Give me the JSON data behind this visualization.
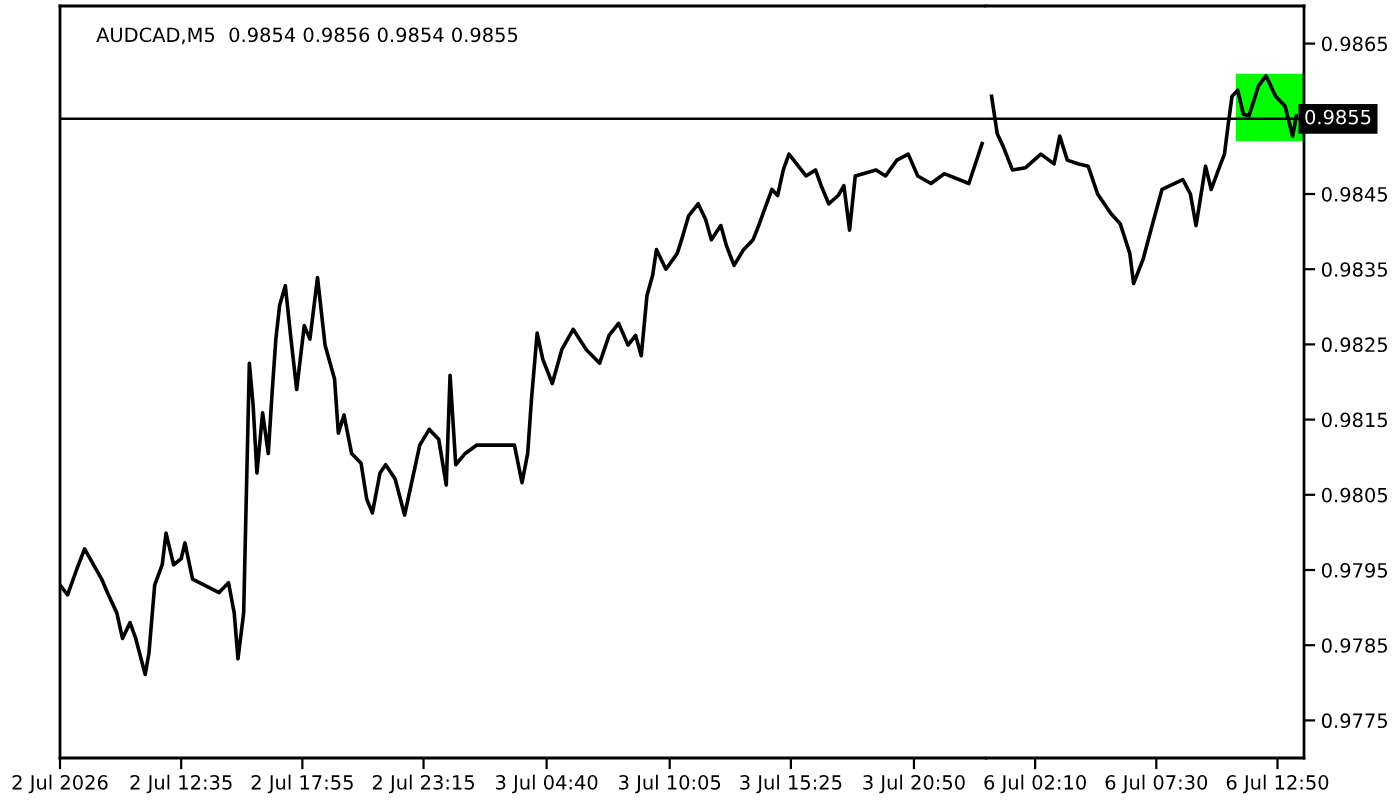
{
  "chart_data": [
    {
      "type": "line",
      "title": "AUDCAD,M5  0.9854 0.9856 0.9854 0.9855",
      "tick_labels": "x",
      "series": [
        {
          "color": "#000000",
          "x": [
            "2026-07-02T07:15",
            "2026-07-02T07:35",
            "2026-07-02T08:00",
            "2026-07-02T08:20",
            "2026-07-02T09:05",
            "2026-07-02T09:20",
            "2026-07-02T09:45",
            "2026-07-02T10:00",
            "2026-07-02T10:20",
            "2026-07-02T10:35",
            "2026-07-02T11:00",
            "2026-07-02T11:10",
            "2026-07-02T11:25",
            "2026-07-02T11:45",
            "2026-07-02T11:55",
            "2026-07-02T12:15",
            "2026-07-02T12:35",
            "2026-07-02T12:45",
            "2026-07-02T13:05",
            "2026-07-02T14:15",
            "2026-07-02T14:40",
            "2026-07-02T14:55",
            "2026-07-02T15:05",
            "2026-07-02T15:20",
            "2026-07-02T15:35",
            "2026-07-02T15:45",
            "2026-07-02T15:55",
            "2026-07-02T16:10",
            "2026-07-02T16:25",
            "2026-07-02T16:35",
            "2026-07-02T16:45",
            "2026-07-02T16:55",
            "2026-07-02T17:10",
            "2026-07-02T17:25",
            "2026-07-02T17:40",
            "2026-07-02T18:00",
            "2026-07-02T18:15",
            "2026-07-02T18:35",
            "2026-07-02T18:55",
            "2026-07-02T19:20",
            "2026-07-02T19:30",
            "2026-07-02T19:45",
            "2026-07-02T20:05",
            "2026-07-02T20:30",
            "2026-07-02T20:45",
            "2026-07-02T21:00",
            "2026-07-02T21:20",
            "2026-07-02T21:35",
            "2026-07-02T22:00",
            "2026-07-02T22:25",
            "2026-07-02T22:40",
            "2026-07-02T23:05",
            "2026-07-02T23:30",
            "2026-07-02T23:55",
            "2026-07-03T00:15",
            "2026-07-03T00:25",
            "2026-07-03T00:40",
            "2026-07-03T01:05",
            "2026-07-03T01:35",
            "2026-07-03T03:15",
            "2026-07-03T03:35",
            "2026-07-03T03:50",
            "2026-07-03T04:00",
            "2026-07-03T04:15",
            "2026-07-03T04:30",
            "2026-07-03T04:55",
            "2026-07-03T05:20",
            "2026-07-03T05:50",
            "2026-07-03T06:25",
            "2026-07-03T07:00",
            "2026-07-03T07:25",
            "2026-07-03T07:50",
            "2026-07-03T08:15",
            "2026-07-03T08:35",
            "2026-07-03T08:50",
            "2026-07-03T09:05",
            "2026-07-03T09:20",
            "2026-07-03T09:30",
            "2026-07-03T09:55",
            "2026-07-03T10:25",
            "2026-07-03T10:40",
            "2026-07-03T10:55",
            "2026-07-03T11:20",
            "2026-07-03T11:40",
            "2026-07-03T11:55",
            "2026-07-03T12:20",
            "2026-07-03T12:35",
            "2026-07-03T12:55",
            "2026-07-03T13:20",
            "2026-07-03T13:45",
            "2026-07-03T14:00",
            "2026-07-03T14:15",
            "2026-07-03T14:35",
            "2026-07-03T14:50",
            "2026-07-03T15:05",
            "2026-07-03T15:20",
            "2026-07-03T16:05",
            "2026-07-03T16:30",
            "2026-07-03T16:45",
            "2026-07-03T17:05",
            "2026-07-03T17:30",
            "2026-07-03T17:45",
            "2026-07-03T18:00",
            "2026-07-03T18:15",
            "2026-07-03T19:10",
            "2026-07-03T19:35",
            "2026-07-03T20:05",
            "2026-07-03T20:35",
            "2026-07-03T21:00",
            "2026-07-03T21:35",
            "2026-07-03T22:10",
            "2026-07-03T23:15",
            "2026-07-03T23:50"
          ],
          "values": [
            0.9793,
            0.97917,
            0.97952,
            0.97978,
            0.97938,
            0.9792,
            0.97893,
            0.97859,
            0.9788,
            0.97859,
            0.97811,
            0.9784,
            0.9793,
            0.97957,
            0.97999,
            0.97957,
            0.97965,
            0.97986,
            0.97938,
            0.9792,
            0.97933,
            0.97893,
            0.97832,
            0.97893,
            0.98225,
            0.98169,
            0.98079,
            0.98159,
            0.98105,
            0.98185,
            0.98257,
            0.98302,
            0.98328,
            0.98257,
            0.9819,
            0.98275,
            0.98257,
            0.98339,
            0.98249,
            0.98204,
            0.98132,
            0.98156,
            0.98105,
            0.98092,
            0.98044,
            0.98026,
            0.98079,
            0.9809,
            0.98071,
            0.98023,
            0.98058,
            0.98116,
            0.98137,
            0.98124,
            0.98063,
            0.98209,
            0.9809,
            0.98105,
            0.98116,
            0.98116,
            0.98066,
            0.98105,
            0.98177,
            0.98265,
            0.9823,
            0.98198,
            0.98243,
            0.9827,
            0.98243,
            0.98225,
            0.98262,
            0.98278,
            0.98249,
            0.98262,
            0.98235,
            0.98315,
            0.98342,
            0.98376,
            0.9835,
            0.98371,
            0.98395,
            0.98421,
            0.98437,
            0.98416,
            0.98389,
            0.98408,
            0.98381,
            0.98355,
            0.98376,
            0.98389,
            0.98408,
            0.98429,
            0.98456,
            0.98448,
            0.98482,
            0.98503,
            0.98474,
            0.98482,
            0.98461,
            0.98437,
            0.98448,
            0.98461,
            0.98402,
            0.98474,
            0.98482,
            0.98474,
            0.98495,
            0.98503,
            0.98474,
            0.98464,
            0.98477,
            0.98464,
            0.98517
          ]
        }
      ],
      "xlim": [
        "2026-07-02T07:15",
        "2026-07-04T00:00"
      ],
      "xticks": [
        {
          "value": "2026-07-02T07:15",
          "label": "2 Jul 2026"
        },
        {
          "value": "2026-07-02T12:35",
          "label": "2 Jul 12:35"
        },
        {
          "value": "2026-07-02T17:55",
          "label": "2 Jul 17:55"
        },
        {
          "value": "2026-07-02T23:15",
          "label": "2 Jul 23:15"
        },
        {
          "value": "2026-07-03T04:40",
          "label": "3 Jul 04:40"
        },
        {
          "value": "2026-07-03T10:05",
          "label": "3 Jul 10:05"
        },
        {
          "value": "2026-07-03T15:25",
          "label": "3 Jul 15:25"
        },
        {
          "value": "2026-07-03T20:50",
          "label": "3 Jul 20:50"
        }
      ],
      "ylim": [
        0.977,
        0.987
      ],
      "yticks": [
        0.9865,
        0.9845,
        0.9835,
        0.9825,
        0.9815,
        0.9805,
        0.9795,
        0.9785,
        0.9775
      ],
      "ref_lines": [
        {
          "axis": "y",
          "value": 0.9855,
          "color": "#000000"
        }
      ]
    },
    {
      "type": "line",
      "series": [
        {
          "color": "#00ff00",
          "x": [
            "2026-07-06T11:00",
            "2026-07-06T14:00"
          ],
          "values": [
            null,
            null
          ],
          "lower": [
            0.9852,
            0.9852
          ],
          "upper": [
            0.9861,
            0.9861
          ]
        },
        {
          "color": "#000000",
          "x": [
            "2026-07-06T00:15",
            "2026-07-06T00:30",
            "2026-07-06T00:45",
            "2026-07-06T01:10",
            "2026-07-06T01:45",
            "2026-07-06T02:25",
            "2026-07-06T03:00",
            "2026-07-06T03:15",
            "2026-07-06T03:35",
            "2026-07-06T04:05",
            "2026-07-06T04:30",
            "2026-07-06T04:55",
            "2026-07-06T05:30",
            "2026-07-06T05:55",
            "2026-07-06T06:20",
            "2026-07-06T06:30",
            "2026-07-06T06:55",
            "2026-07-06T07:20",
            "2026-07-06T07:45",
            "2026-07-06T08:40",
            "2026-07-06T09:00",
            "2026-07-06T09:15",
            "2026-07-06T09:40",
            "2026-07-06T09:55",
            "2026-07-06T10:20",
            "2026-07-06T10:30",
            "2026-07-06T10:40",
            "2026-07-06T10:50",
            "2026-07-06T11:05",
            "2026-07-06T11:20",
            "2026-07-06T11:35",
            "2026-07-06T12:00",
            "2026-07-06T12:20",
            "2026-07-06T12:45",
            "2026-07-06T13:10",
            "2026-07-06T13:30",
            "2026-07-06T13:40"
          ],
          "values": [
            0.9858,
            0.9853,
            0.98514,
            0.98482,
            0.98485,
            0.98503,
            0.9849,
            0.98527,
            0.98495,
            0.9849,
            0.98487,
            0.9845,
            0.98424,
            0.9841,
            0.98371,
            0.98331,
            0.98363,
            0.9841,
            0.98456,
            0.98469,
            0.9845,
            0.98408,
            0.98487,
            0.98456,
            0.9849,
            0.98503,
            0.98543,
            0.9858,
            0.98588,
            0.98556,
            0.98554,
            0.98594,
            0.98607,
            0.9858,
            0.98567,
            0.98527,
            0.98554
          ]
        }
      ],
      "xlim": [
        "2026-07-06T00:00",
        "2026-07-06T14:00"
      ],
      "xticks": [
        {
          "value": "2026-07-06T02:10",
          "label": "6 Jul 02:10"
        },
        {
          "value": "2026-07-06T07:30",
          "label": "6 Jul 07:30"
        },
        {
          "value": "2026-07-06T12:50",
          "label": "6 Jul 12:50"
        }
      ],
      "ylim": [
        0.977,
        0.987
      ],
      "yticks": [
        0.9865,
        0.9845,
        0.9835,
        0.9825,
        0.9815,
        0.9805,
        0.9795,
        0.9785,
        0.9775
      ],
      "ref_lines": [
        {
          "axis": "y",
          "value": 0.9855,
          "label": "0.9855",
          "color": "#000000"
        }
      ]
    }
  ]
}
